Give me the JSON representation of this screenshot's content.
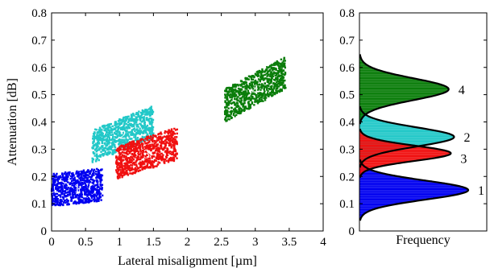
{
  "colors": {
    "c1": "#0000f0",
    "c2": "#22c8c8",
    "c3": "#f01010",
    "c4": "#0a7d0a",
    "curve": "#000000"
  },
  "chart_data": [
    {
      "type": "scatter",
      "xlabel": "Lateral misalignment [µm]",
      "ylabel": "Attenuation [dB]",
      "xlim": [
        0,
        4
      ],
      "ylim": [
        0,
        0.8
      ],
      "x_ticks": [
        "0",
        "0.5",
        "1",
        "1.5",
        "2",
        "2.5",
        "3",
        "3.5",
        "4"
      ],
      "y_ticks": [
        "0",
        "0.1",
        "0.2",
        "0.3",
        "0.4",
        "0.5",
        "0.6",
        "0.7",
        "0.8"
      ],
      "clusters": [
        {
          "label": "1",
          "x_range": [
            0.0,
            0.75
          ],
          "y_center_at_xmin": 0.15,
          "y_center_at_xmax": 0.17,
          "y_halfwidth": 0.06,
          "points": 700,
          "color_key": "c1"
        },
        {
          "label": "2",
          "x_range": [
            0.6,
            1.5
          ],
          "y_center_at_xmin": 0.31,
          "y_center_at_xmax": 0.4,
          "y_halfwidth": 0.06,
          "points": 800,
          "color_key": "c2"
        },
        {
          "label": "3",
          "x_range": [
            0.95,
            1.85
          ],
          "y_center_at_xmin": 0.25,
          "y_center_at_xmax": 0.32,
          "y_halfwidth": 0.06,
          "points": 800,
          "color_key": "c3"
        },
        {
          "label": "4",
          "x_range": [
            2.55,
            3.45
          ],
          "y_center_at_xmin": 0.46,
          "y_center_at_xmax": 0.58,
          "y_halfwidth": 0.06,
          "points": 800,
          "color_key": "c4"
        }
      ]
    },
    {
      "type": "area",
      "xlabel": "Frequency",
      "ylabel": "",
      "ylim": [
        0,
        0.8
      ],
      "y_ticks": [
        "0",
        "0.1",
        "0.2",
        "0.3",
        "0.4",
        "0.5",
        "0.6",
        "0.7",
        "0.8"
      ],
      "distributions": [
        {
          "label": "1",
          "mean": 0.15,
          "sd": 0.035,
          "peak": 1.0,
          "color_key": "c1"
        },
        {
          "label": "2",
          "mean": 0.345,
          "sd": 0.035,
          "peak": 0.87,
          "color_key": "c2"
        },
        {
          "label": "3",
          "mean": 0.285,
          "sd": 0.028,
          "peak": 0.84,
          "color_key": "c3"
        },
        {
          "label": "4",
          "mean": 0.52,
          "sd": 0.04,
          "peak": 0.82,
          "color_key": "c4"
        }
      ]
    }
  ]
}
